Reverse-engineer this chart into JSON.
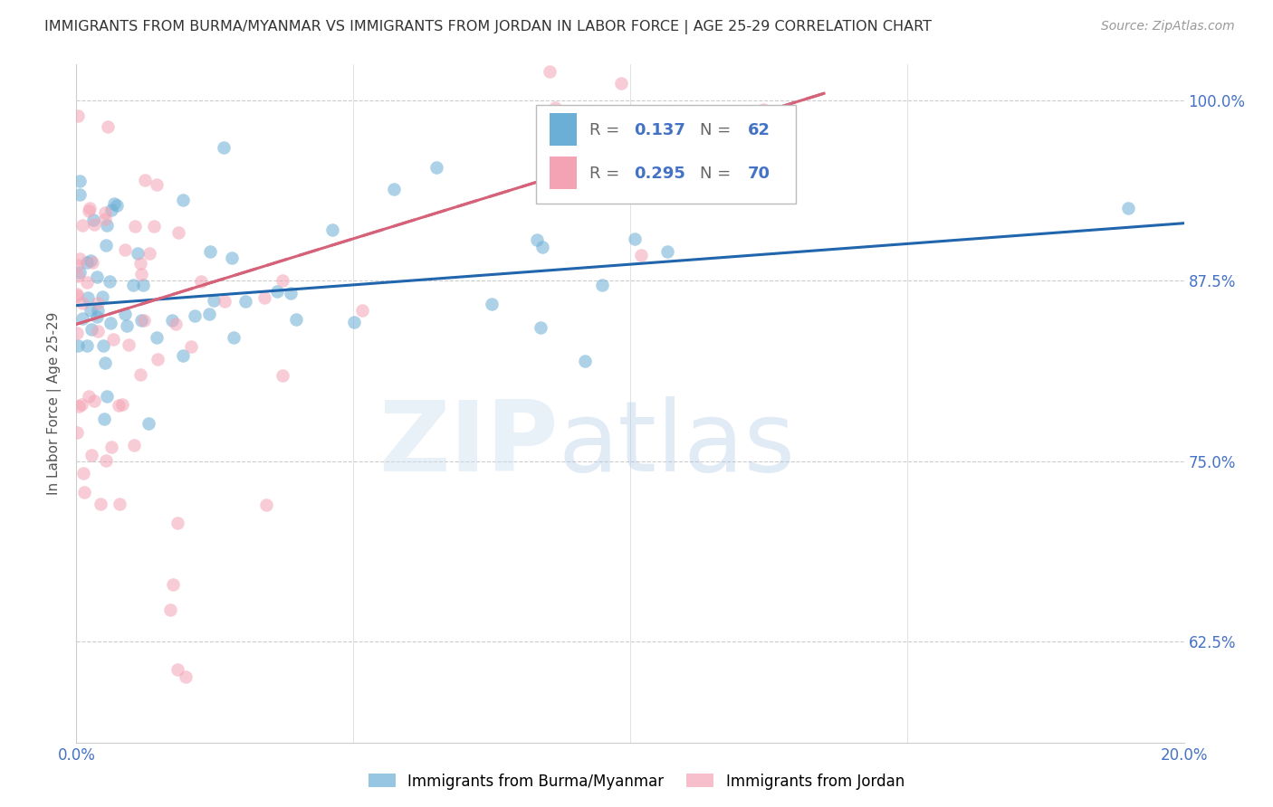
{
  "title": "IMMIGRANTS FROM BURMA/MYANMAR VS IMMIGRANTS FROM JORDAN IN LABOR FORCE | AGE 25-29 CORRELATION CHART",
  "source": "Source: ZipAtlas.com",
  "ylabel": "In Labor Force | Age 25-29",
  "xlim": [
    0.0,
    0.2
  ],
  "ylim": [
    0.555,
    1.025
  ],
  "yticks": [
    0.625,
    0.75,
    0.875,
    1.0
  ],
  "ytick_labels": [
    "62.5%",
    "75.0%",
    "87.5%",
    "100.0%"
  ],
  "xticks": [
    0.0,
    0.05,
    0.1,
    0.15,
    0.2
  ],
  "xtick_labels": [
    "0.0%",
    "",
    "",
    "",
    "20.0%"
  ],
  "blue_R": 0.137,
  "blue_N": 62,
  "pink_R": 0.295,
  "pink_N": 70,
  "blue_color": "#6baed6",
  "pink_color": "#f4a3b5",
  "blue_line_color": "#2166ac",
  "pink_line_color": "#d6627a",
  "legend_label_blue": "Immigrants from Burma/Myanmar",
  "legend_label_pink": "Immigrants from Jordan",
  "blue_line_x0": 0.0,
  "blue_line_x1": 0.2,
  "blue_line_y0": 0.858,
  "blue_line_y1": 0.915,
  "pink_line_x0": 0.0,
  "pink_line_x1": 0.135,
  "pink_line_y0": 0.845,
  "pink_line_y1": 1.005
}
